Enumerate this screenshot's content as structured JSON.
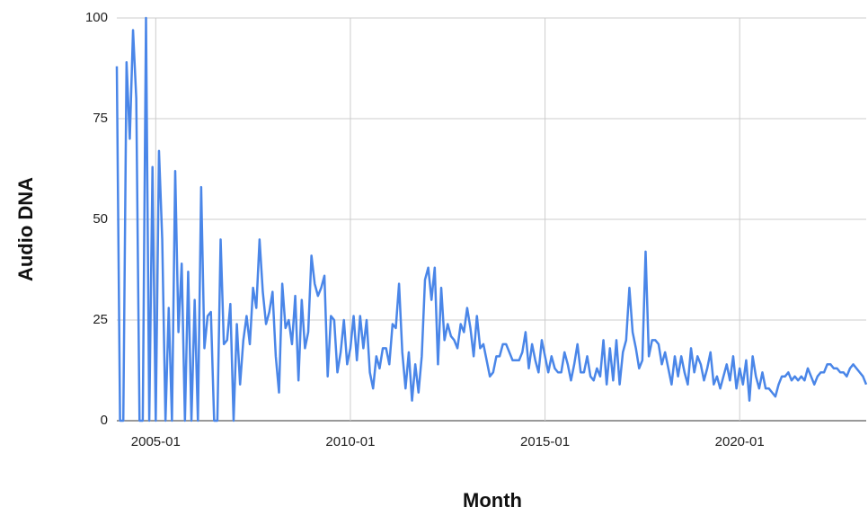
{
  "chart_data": {
    "type": "line",
    "x_label": "Month",
    "y_label": "Audio DNA",
    "x": [
      "2004-01",
      "2004-02",
      "2004-03",
      "2004-04",
      "2004-05",
      "2004-06",
      "2004-07",
      "2004-08",
      "2004-09",
      "2004-10",
      "2004-11",
      "2004-12",
      "2005-01",
      "2005-02",
      "2005-03",
      "2005-04",
      "2005-05",
      "2005-06",
      "2005-07",
      "2005-08",
      "2005-09",
      "2005-10",
      "2005-11",
      "2005-12",
      "2006-01",
      "2006-02",
      "2006-03",
      "2006-04",
      "2006-05",
      "2006-06",
      "2006-07",
      "2006-08",
      "2006-09",
      "2006-10",
      "2006-11",
      "2006-12",
      "2007-01",
      "2007-02",
      "2007-03",
      "2007-04",
      "2007-05",
      "2007-06",
      "2007-07",
      "2007-08",
      "2007-09",
      "2007-10",
      "2007-11",
      "2007-12",
      "2008-01",
      "2008-02",
      "2008-03",
      "2008-04",
      "2008-05",
      "2008-06",
      "2008-07",
      "2008-08",
      "2008-09",
      "2008-10",
      "2008-11",
      "2008-12",
      "2009-01",
      "2009-02",
      "2009-03",
      "2009-04",
      "2009-05",
      "2009-06",
      "2009-07",
      "2009-08",
      "2009-09",
      "2009-10",
      "2009-11",
      "2009-12",
      "2010-01",
      "2010-02",
      "2010-03",
      "2010-04",
      "2010-05",
      "2010-06",
      "2010-07",
      "2010-08",
      "2010-09",
      "2010-10",
      "2010-11",
      "2010-12",
      "2011-01",
      "2011-02",
      "2011-03",
      "2011-04",
      "2011-05",
      "2011-06",
      "2011-07",
      "2011-08",
      "2011-09",
      "2011-10",
      "2011-11",
      "2011-12",
      "2012-01",
      "2012-02",
      "2012-03",
      "2012-04",
      "2012-05",
      "2012-06",
      "2012-07",
      "2012-08",
      "2012-09",
      "2012-10",
      "2012-11",
      "2012-12",
      "2013-01",
      "2013-02",
      "2013-03",
      "2013-04",
      "2013-05",
      "2013-06",
      "2013-07",
      "2013-08",
      "2013-09",
      "2013-10",
      "2013-11",
      "2013-12",
      "2014-01",
      "2014-02",
      "2014-03",
      "2014-04",
      "2014-05",
      "2014-06",
      "2014-07",
      "2014-08",
      "2014-09",
      "2014-10",
      "2014-11",
      "2014-12",
      "2015-01",
      "2015-02",
      "2015-03",
      "2015-04",
      "2015-05",
      "2015-06",
      "2015-07",
      "2015-08",
      "2015-09",
      "2015-10",
      "2015-11",
      "2015-12",
      "2016-01",
      "2016-02",
      "2016-03",
      "2016-04",
      "2016-05",
      "2016-06",
      "2016-07",
      "2016-08",
      "2016-09",
      "2016-10",
      "2016-11",
      "2016-12",
      "2017-01",
      "2017-02",
      "2017-03",
      "2017-04",
      "2017-05",
      "2017-06",
      "2017-07",
      "2017-08",
      "2017-09",
      "2017-10",
      "2017-11",
      "2017-12",
      "2018-01",
      "2018-02",
      "2018-03",
      "2018-04",
      "2018-05",
      "2018-06",
      "2018-07",
      "2018-08",
      "2018-09",
      "2018-10",
      "2018-11",
      "2018-12",
      "2019-01",
      "2019-02",
      "2019-03",
      "2019-04",
      "2019-05",
      "2019-06",
      "2019-07",
      "2019-08",
      "2019-09",
      "2019-10",
      "2019-11",
      "2019-12",
      "2020-01",
      "2020-02",
      "2020-03",
      "2020-04",
      "2020-05",
      "2020-06",
      "2020-07",
      "2020-08",
      "2020-09",
      "2020-10",
      "2020-11",
      "2020-12",
      "2021-01",
      "2021-02",
      "2021-03",
      "2021-04",
      "2021-05",
      "2021-06",
      "2021-07",
      "2021-08",
      "2021-09",
      "2021-10",
      "2021-11",
      "2021-12",
      "2022-01",
      "2022-02",
      "2022-03",
      "2022-04",
      "2022-05",
      "2022-06",
      "2022-07",
      "2022-08",
      "2022-09",
      "2022-10",
      "2022-11",
      "2022-12",
      "2023-01",
      "2023-02",
      "2023-03",
      "2023-04"
    ],
    "series": [
      {
        "name": "Audio DNA",
        "color": "#4a86e8",
        "values": [
          88,
          0,
          0,
          89,
          70,
          97,
          80,
          0,
          0,
          100,
          0,
          63,
          0,
          67,
          45,
          0,
          28,
          0,
          62,
          22,
          39,
          0,
          37,
          0,
          30,
          0,
          58,
          18,
          26,
          27,
          0,
          0,
          45,
          19,
          20,
          29,
          0,
          24,
          9,
          20,
          26,
          19,
          33,
          28,
          45,
          32,
          24,
          27,
          32,
          16,
          7,
          34,
          23,
          25,
          19,
          31,
          10,
          30,
          18,
          22,
          41,
          34,
          31,
          33,
          36,
          11,
          26,
          25,
          12,
          17,
          25,
          14,
          18,
          26,
          15,
          26,
          18,
          25,
          12,
          8,
          16,
          13,
          18,
          18,
          14,
          24,
          23,
          34,
          17,
          8,
          17,
          5,
          14,
          7,
          16,
          35,
          38,
          30,
          38,
          14,
          33,
          20,
          24,
          21,
          20,
          18,
          24,
          22,
          28,
          23,
          16,
          26,
          18,
          19,
          15,
          11,
          12,
          16,
          16,
          19,
          19,
          17,
          15,
          15,
          15,
          17,
          22,
          13,
          19,
          15,
          12,
          20,
          16,
          12,
          16,
          13,
          12,
          12,
          17,
          14,
          10,
          14,
          19,
          12,
          12,
          16,
          11,
          10,
          13,
          11,
          20,
          9,
          18,
          10,
          20,
          9,
          17,
          20,
          33,
          22,
          18,
          13,
          15,
          42,
          16,
          20,
          20,
          19,
          14,
          17,
          13,
          9,
          16,
          11,
          16,
          12,
          9,
          18,
          12,
          16,
          14,
          10,
          13,
          17,
          9,
          11,
          8,
          11,
          14,
          10,
          16,
          8,
          13,
          9,
          15,
          5,
          16,
          11,
          8,
          12,
          8,
          8,
          7,
          6,
          9,
          11,
          11,
          12,
          10,
          11,
          10,
          11,
          10,
          13,
          11,
          9,
          11,
          12,
          12,
          14,
          14,
          13,
          13,
          12,
          12,
          11,
          13,
          14,
          13,
          12,
          11,
          9
        ]
      }
    ],
    "xticks": [
      "2005-01",
      "2010-01",
      "2015-01",
      "2020-01"
    ],
    "ylim": [
      0,
      100
    ],
    "yticks": [
      0,
      25,
      50,
      75,
      100
    ],
    "grid": true
  }
}
